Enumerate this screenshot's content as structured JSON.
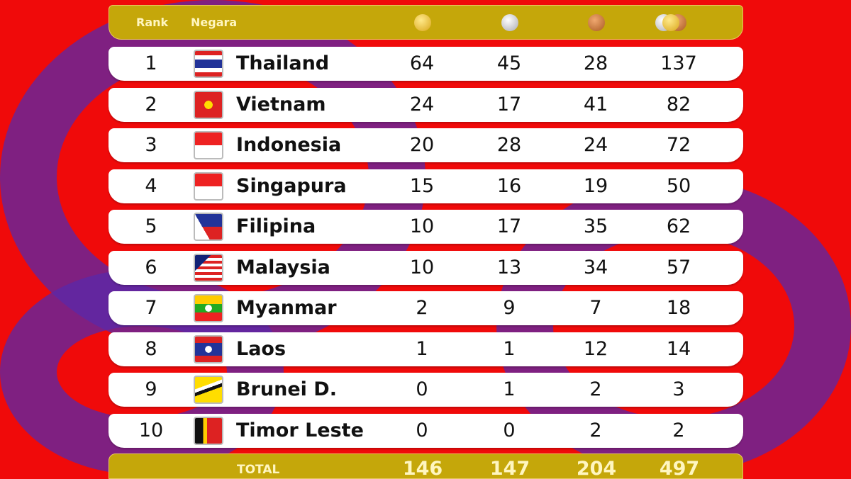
{
  "header": {
    "rank": "Rank",
    "country": "Negara",
    "medal_icons": [
      "gold-medal-icon",
      "silver-medal-icon",
      "bronze-medal-icon",
      "all-medals-icon"
    ]
  },
  "rows": [
    {
      "rank": "1",
      "country": "Thailand",
      "gold": "64",
      "silver": "45",
      "bronze": "28",
      "total": "137"
    },
    {
      "rank": "2",
      "country": "Vietnam",
      "gold": "24",
      "silver": "17",
      "bronze": "41",
      "total": "82"
    },
    {
      "rank": "3",
      "country": "Indonesia",
      "gold": "20",
      "silver": "28",
      "bronze": "24",
      "total": "72"
    },
    {
      "rank": "4",
      "country": "Singapura",
      "gold": "15",
      "silver": "16",
      "bronze": "19",
      "total": "50"
    },
    {
      "rank": "5",
      "country": "Filipina",
      "gold": "10",
      "silver": "17",
      "bronze": "35",
      "total": "62"
    },
    {
      "rank": "6",
      "country": "Malaysia",
      "gold": "10",
      "silver": "13",
      "bronze": "34",
      "total": "57"
    },
    {
      "rank": "7",
      "country": "Myanmar",
      "gold": "2",
      "silver": "9",
      "bronze": "7",
      "total": "18"
    },
    {
      "rank": "8",
      "country": "Laos",
      "gold": "1",
      "silver": "1",
      "bronze": "12",
      "total": "14"
    },
    {
      "rank": "9",
      "country": "Brunei D.",
      "gold": "0",
      "silver": "1",
      "bronze": "2",
      "total": "3"
    },
    {
      "rank": "10",
      "country": "Timor Leste",
      "gold": "0",
      "silver": "0",
      "bronze": "2",
      "total": "2"
    }
  ],
  "total": {
    "label": "TOTAL",
    "gold": "146",
    "silver": "147",
    "bronze": "204",
    "total": "497"
  },
  "colors": {
    "background": "#f00a0a",
    "header": "#c5a70a",
    "accent_purple": "#5a28aa"
  }
}
